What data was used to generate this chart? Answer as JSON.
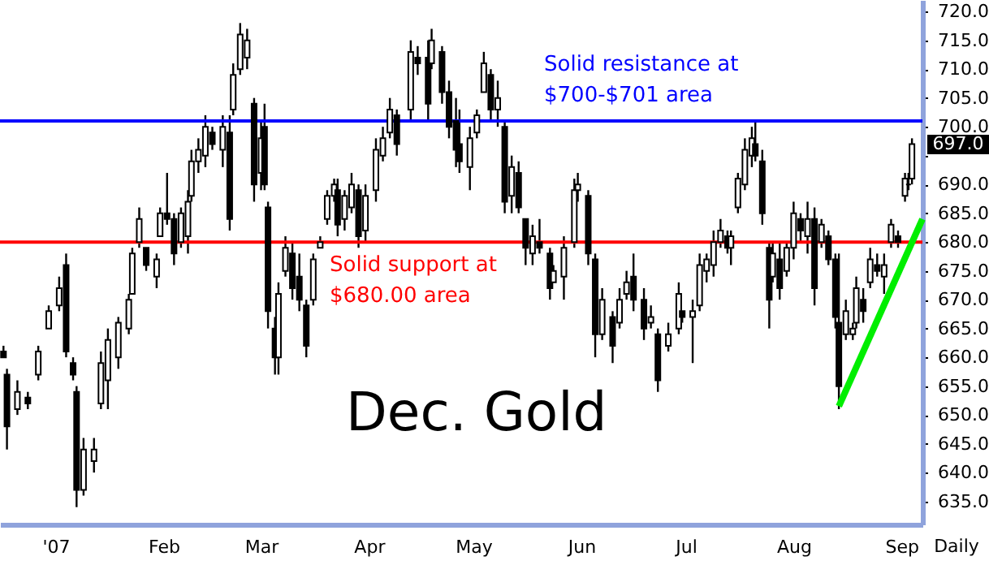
{
  "chart_data": {
    "type": "candlestick",
    "color": "#000000",
    "x": [
      "2006-12-17",
      "2006-12-18",
      "2006-12-21",
      "2006-12-24",
      "2006-12-27",
      "2006-12-30",
      "2007-01-02",
      "2007-01-04",
      "2007-01-06",
      "2007-01-07",
      "2007-01-09",
      "2007-01-12",
      "2007-01-14",
      "2007-01-16",
      "2007-01-19",
      "2007-01-22",
      "2007-01-23",
      "2007-01-25",
      "2007-01-27",
      "2007-01-30",
      "2007-01-31",
      "2007-02-02",
      "2007-02-04",
      "2007-02-06",
      "2007-02-08",
      "2007-02-09",
      "2007-02-11",
      "2007-02-13",
      "2007-02-15",
      "2007-02-18",
      "2007-02-20",
      "2007-02-21",
      "2007-02-23",
      "2007-02-25",
      "2007-02-27",
      "2007-03-01",
      "2007-03-02",
      "2007-03-03",
      "2007-03-05",
      "2007-03-06",
      "2007-03-08",
      "2007-03-10",
      "2007-03-12",
      "2007-03-14",
      "2007-03-16",
      "2007-03-18",
      "2007-03-20",
      "2007-03-22",
      "2007-03-23",
      "2007-03-25",
      "2007-03-27",
      "2007-03-29",
      "2007-03-31",
      "2007-04-03",
      "2007-04-05",
      "2007-04-07",
      "2007-04-09",
      "2007-04-13",
      "2007-04-15",
      "2007-04-18",
      "2007-04-19",
      "2007-04-22",
      "2007-04-24",
      "2007-04-26",
      "2007-04-27",
      "2007-04-30",
      "2007-05-02",
      "2007-05-04",
      "2007-05-06",
      "2007-05-08",
      "2007-05-10",
      "2007-05-12",
      "2007-05-14",
      "2007-05-16",
      "2007-05-18",
      "2007-05-20",
      "2007-05-23",
      "2007-05-24",
      "2007-05-27",
      "2007-05-30",
      "2007-05-31",
      "2007-06-03",
      "2007-06-05",
      "2007-06-07",
      "2007-06-10",
      "2007-06-12",
      "2007-06-14",
      "2007-06-16",
      "2007-06-19",
      "2007-06-21",
      "2007-06-23",
      "2007-06-26",
      "2007-06-29",
      "2007-06-30",
      "2007-07-03",
      "2007-07-05",
      "2007-07-07",
      "2007-07-09",
      "2007-07-11",
      "2007-07-13",
      "2007-07-14",
      "2007-07-16",
      "2007-07-18",
      "2007-07-20",
      "2007-07-21",
      "2007-07-23",
      "2007-07-25",
      "2007-07-26",
      "2007-07-28",
      "2007-07-30",
      "2007-08-01",
      "2007-08-03",
      "2007-08-05",
      "2007-08-07",
      "2007-08-09",
      "2007-08-11",
      "2007-08-13",
      "2007-08-14",
      "2007-08-16",
      "2007-08-18",
      "2007-08-19",
      "2007-08-21",
      "2007-08-23",
      "2007-08-25",
      "2007-08-27",
      "2007-08-29",
      "2007-08-31",
      "2007-09-02",
      "2007-09-03",
      "2007-09-04"
    ],
    "ohlc": [
      [
        661,
        662,
        660,
        660
      ],
      [
        657,
        658,
        644,
        648
      ],
      [
        651,
        656,
        650,
        654
      ],
      [
        653,
        654,
        651,
        652
      ],
      [
        657,
        662,
        656,
        661
      ],
      [
        665,
        669,
        665,
        668
      ],
      [
        669,
        674,
        668,
        672
      ],
      [
        676,
        678,
        660,
        661
      ],
      [
        659,
        660,
        656,
        657
      ],
      [
        654,
        655,
        634,
        637
      ],
      [
        637,
        646,
        636,
        644
      ],
      [
        642,
        646,
        640,
        644
      ],
      [
        652,
        661,
        651,
        659
      ],
      [
        656,
        665,
        651,
        663
      ],
      [
        660,
        667,
        658,
        666
      ],
      [
        665,
        671,
        664,
        670
      ],
      [
        671,
        679,
        671,
        678
      ],
      [
        680,
        686,
        679,
        684
      ],
      [
        679,
        679,
        675,
        676
      ],
      [
        674,
        678,
        672,
        677
      ],
      [
        681,
        686,
        681,
        685
      ],
      [
        685,
        692,
        683,
        684
      ],
      [
        684,
        685,
        676,
        678
      ],
      [
        680,
        686,
        679,
        685
      ],
      [
        681,
        689,
        678,
        687
      ],
      [
        688,
        696,
        687,
        694
      ],
      [
        694,
        698,
        692,
        696
      ],
      [
        695,
        702,
        693,
        700
      ],
      [
        699,
        700,
        696,
        697
      ],
      [
        696,
        702,
        693,
        700
      ],
      [
        699,
        702,
        682,
        684
      ],
      [
        703,
        711,
        702,
        709
      ],
      [
        710,
        718,
        709,
        716
      ],
      [
        712,
        717,
        710,
        715
      ],
      [
        704,
        705,
        687,
        690
      ],
      [
        692,
        701,
        689,
        698
      ],
      [
        700,
        704,
        689,
        690
      ],
      [
        686,
        687,
        665,
        668
      ],
      [
        665,
        667,
        657,
        660
      ],
      [
        660,
        673,
        657,
        671
      ],
      [
        675,
        681,
        674,
        679
      ],
      [
        678,
        680,
        670,
        672
      ],
      [
        674,
        678,
        668,
        670
      ],
      [
        669,
        670,
        660,
        662
      ],
      [
        670,
        678,
        669,
        677
      ],
      [
        679,
        681,
        679,
        680
      ],
      [
        684,
        689,
        683,
        688
      ],
      [
        688,
        691,
        687,
        690
      ],
      [
        689,
        691,
        681,
        683
      ],
      [
        684,
        689,
        682,
        688
      ],
      [
        686,
        692,
        685,
        690
      ],
      [
        689,
        690,
        679,
        681
      ],
      [
        682,
        690,
        680,
        688
      ],
      [
        689,
        698,
        687,
        696
      ],
      [
        695,
        700,
        694,
        698
      ],
      [
        699,
        705,
        698,
        703
      ],
      [
        702,
        703,
        695,
        697
      ],
      [
        703,
        715,
        701,
        713
      ],
      [
        712,
        714,
        709,
        711
      ],
      [
        712,
        715,
        701,
        704
      ],
      [
        711,
        717,
        710,
        715
      ],
      [
        713,
        714,
        704,
        706
      ],
      [
        706,
        708,
        698,
        700
      ],
      [
        701,
        705,
        693,
        696
      ],
      [
        697,
        703,
        692,
        694
      ],
      [
        693,
        700,
        689,
        698
      ],
      [
        699,
        703,
        698,
        702
      ],
      [
        706,
        713,
        706,
        711
      ],
      [
        709,
        710,
        701,
        703
      ],
      [
        703,
        708,
        700,
        705
      ],
      [
        700,
        701,
        685,
        687
      ],
      [
        688,
        695,
        685,
        693
      ],
      [
        692,
        694,
        685,
        686
      ],
      [
        684,
        684,
        676,
        679
      ],
      [
        678,
        683,
        676,
        681
      ],
      [
        680,
        684,
        678,
        679
      ],
      [
        678,
        679,
        670,
        672
      ],
      [
        673,
        676,
        673,
        675
      ],
      [
        674,
        681,
        670,
        679
      ],
      [
        680,
        691,
        679,
        689
      ],
      [
        689,
        692,
        687,
        690
      ],
      [
        688,
        689,
        676,
        678
      ],
      [
        677,
        678,
        660,
        664
      ],
      [
        664,
        672,
        663,
        670
      ],
      [
        667,
        668,
        659,
        662
      ],
      [
        666,
        672,
        665,
        670
      ],
      [
        671,
        675,
        670,
        673
      ],
      [
        674,
        678,
        668,
        670
      ],
      [
        670,
        672,
        663,
        665
      ],
      [
        666,
        669,
        665,
        667
      ],
      [
        664,
        665,
        654,
        656
      ],
      [
        662,
        666,
        661,
        664
      ],
      [
        665,
        673,
        664,
        671
      ],
      [
        668,
        668,
        666,
        667
      ],
      [
        667,
        670,
        659,
        668
      ],
      [
        669,
        678,
        668,
        676
      ],
      [
        675,
        678,
        673,
        677
      ],
      [
        676,
        682,
        674,
        680
      ],
      [
        680,
        684,
        679,
        682
      ],
      [
        681,
        682,
        678,
        679
      ],
      [
        679,
        682,
        676,
        681
      ],
      [
        686,
        692,
        685,
        691
      ],
      [
        690,
        698,
        689,
        696
      ],
      [
        695,
        700,
        693,
        698
      ],
      [
        697,
        701,
        694,
        695
      ],
      [
        694,
        696,
        683,
        685
      ],
      [
        679,
        680,
        665,
        670
      ],
      [
        674,
        680,
        673,
        678
      ],
      [
        677,
        680,
        670,
        672
      ],
      [
        675,
        680,
        674,
        679
      ],
      [
        679,
        687,
        677,
        685
      ],
      [
        684,
        685,
        680,
        682
      ],
      [
        681,
        687,
        678,
        684
      ],
      [
        684,
        686,
        669,
        672
      ],
      [
        680,
        684,
        679,
        683
      ],
      [
        681,
        682,
        676,
        677
      ],
      [
        677,
        678,
        665,
        667
      ],
      [
        666,
        678,
        651,
        655
      ],
      [
        664,
        670,
        663,
        668
      ],
      [
        664,
        666,
        663,
        665
      ],
      [
        666,
        674,
        665,
        672
      ],
      [
        670,
        672,
        666,
        668
      ],
      [
        673,
        679,
        672,
        677
      ],
      [
        676,
        678,
        674,
        675
      ],
      [
        674,
        678,
        671,
        676
      ],
      [
        680,
        684,
        679,
        683
      ],
      [
        681,
        682,
        679,
        680
      ],
      [
        688,
        692,
        687,
        691
      ],
      [
        690,
        692,
        689,
        690
      ],
      [
        691,
        698,
        690,
        697
      ]
    ],
    "series": [
      {
        "type": "line",
        "color": "#00ee00",
        "x": [
          "2007-08-14",
          "2007-09-07"
        ],
        "values": [
          651.5,
          684
        ]
      }
    ],
    "xlim": [
      "2006-12-16",
      "2007-09-07"
    ],
    "xticks": [
      {
        "value": "2007-01-01",
        "label": "'07"
      },
      {
        "value": "2007-02-01",
        "label": "Feb"
      },
      {
        "value": "2007-03-01",
        "label": "Mar"
      },
      {
        "value": "2007-04-01",
        "label": "Apr"
      },
      {
        "value": "2007-05-01",
        "label": "May"
      },
      {
        "value": "2007-06-01",
        "label": "Jun"
      },
      {
        "value": "2007-07-01",
        "label": "Jul"
      },
      {
        "value": "2007-08-01",
        "label": "Aug"
      },
      {
        "value": "2007-09-01",
        "label": "Sep"
      }
    ],
    "ylim": [
      631,
      722
    ],
    "yticks": [
      {
        "value": 635,
        "label": "635.0"
      },
      {
        "value": 640,
        "label": "640.0"
      },
      {
        "value": 645,
        "label": "645.0"
      },
      {
        "value": 650,
        "label": "650.0"
      },
      {
        "value": 655,
        "label": "655.0"
      },
      {
        "value": 660,
        "label": "660.0"
      },
      {
        "value": 665,
        "label": "665.0"
      },
      {
        "value": 670,
        "label": "670.0"
      },
      {
        "value": 675,
        "label": "675.0"
      },
      {
        "value": 680,
        "label": "680.0"
      },
      {
        "value": 685,
        "label": "685.0"
      },
      {
        "value": 690,
        "label": "690.0"
      },
      {
        "value": 695,
        "label": null
      },
      {
        "value": 700,
        "label": "700.0"
      },
      {
        "value": 705,
        "label": "705.0"
      },
      {
        "value": 710,
        "label": "710.0"
      },
      {
        "value": 715,
        "label": "715.0"
      },
      {
        "value": 720,
        "label": "720.0"
      }
    ],
    "ref_lines": [
      {
        "axis": "y",
        "value": 701,
        "label": "Solid resistance at\n$700-$701 area",
        "color": "#0000ff"
      },
      {
        "axis": "y",
        "value": 680,
        "label": "Solid support at\n$680.00 area",
        "color": "#ff0000"
      }
    ],
    "annotations": [
      "Dec. Gold",
      "Daily",
      "697.0"
    ]
  }
}
